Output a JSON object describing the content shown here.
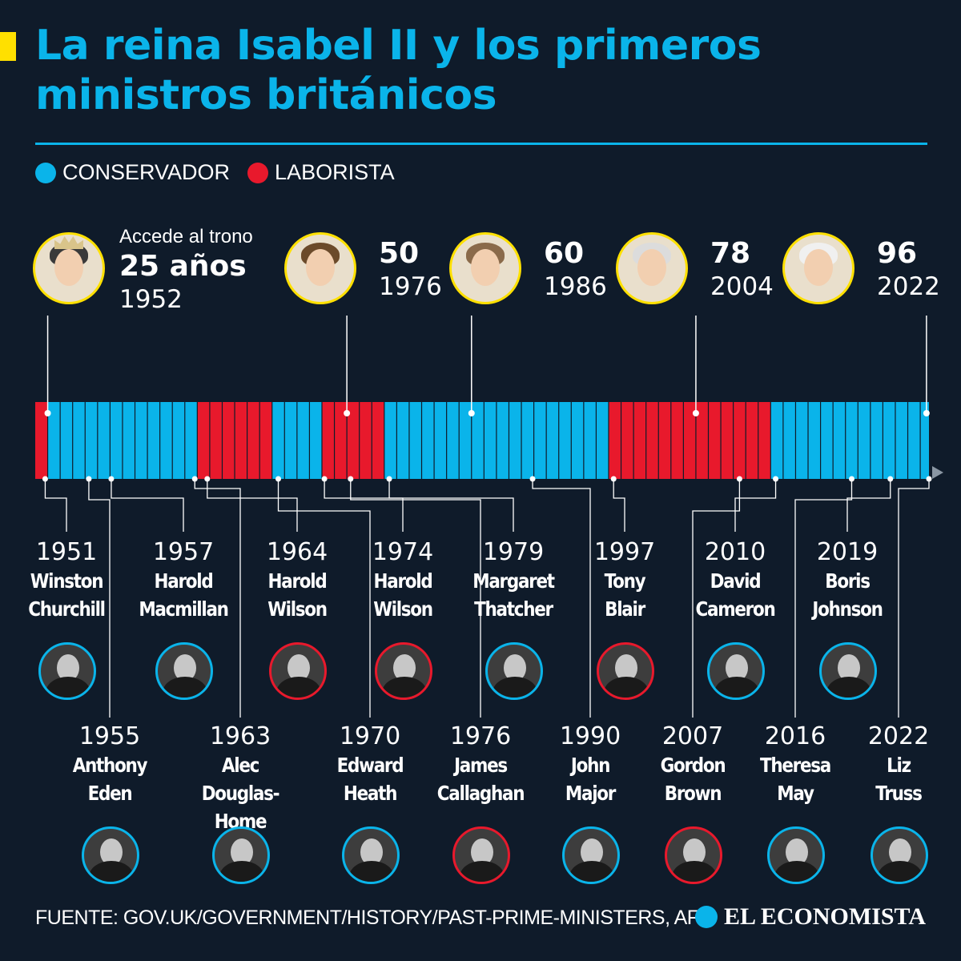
{
  "title": "La reina Isabel II y los primeros ministros británicos",
  "legend": [
    {
      "label": "CONSERVADOR",
      "color": "#0ab4ea"
    },
    {
      "label": "LABORISTA",
      "color": "#e8192c"
    }
  ],
  "colors": {
    "conservador": "#0ab4ea",
    "laborista": "#e8192c",
    "queen_ring": "#ffe000",
    "background": "#0f1b2a"
  },
  "timeline": {
    "segments": [
      {
        "from": 1951,
        "to": 1952,
        "party": "laborista"
      },
      {
        "from": 1952,
        "to": 1964,
        "party": "conservador"
      },
      {
        "from": 1964,
        "to": 1970,
        "party": "laborista"
      },
      {
        "from": 1970,
        "to": 1974,
        "party": "conservador"
      },
      {
        "from": 1974,
        "to": 1979,
        "party": "laborista"
      },
      {
        "from": 1979,
        "to": 1997,
        "party": "conservador"
      },
      {
        "from": 1997,
        "to": 2010,
        "party": "laborista"
      },
      {
        "from": 2010,
        "to": 2022.7,
        "party": "conservador"
      }
    ]
  },
  "queen_milestones": [
    {
      "note": "Accede al trono",
      "age": "25 años",
      "year": "1952",
      "year_value": 1952,
      "hair": "#3a3a3a"
    },
    {
      "age": "50",
      "year": "1976",
      "year_value": 1976,
      "hair": "#6b4a2a"
    },
    {
      "age": "60",
      "year": "1986",
      "year_value": 1986,
      "hair": "#8a6a4a"
    },
    {
      "age": "78",
      "year": "2004",
      "year_value": 2004,
      "hair": "#dcdcdc"
    },
    {
      "age": "96",
      "year": "2022",
      "year_value": 2022.5,
      "hair": "#f0f0f0"
    }
  ],
  "prime_ministers": [
    {
      "year": "1951",
      "name": [
        "Winston",
        "Churchill"
      ],
      "start": 1951.8,
      "party": "conservador",
      "row": "top"
    },
    {
      "year": "1955",
      "name": [
        "Anthony",
        "Eden"
      ],
      "start": 1955.3,
      "party": "conservador",
      "row": "bottom"
    },
    {
      "year": "1957",
      "name": [
        "Harold",
        "Macmillan"
      ],
      "start": 1957.1,
      "party": "conservador",
      "row": "top"
    },
    {
      "year": "1963",
      "name": [
        "Alec",
        "Douglas-Home"
      ],
      "start": 1963.8,
      "party": "conservador",
      "row": "bottom"
    },
    {
      "year": "1964",
      "name": [
        "Harold",
        "Wilson"
      ],
      "start": 1964.8,
      "party": "laborista",
      "row": "top"
    },
    {
      "year": "1970",
      "name": [
        "Edward",
        "Heath"
      ],
      "start": 1970.5,
      "party": "conservador",
      "row": "bottom"
    },
    {
      "year": "1974",
      "name": [
        "Harold",
        "Wilson"
      ],
      "start": 1974.2,
      "party": "laborista",
      "row": "top"
    },
    {
      "year": "1976",
      "name": [
        "James",
        "Callaghan"
      ],
      "start": 1976.3,
      "party": "laborista",
      "row": "bottom"
    },
    {
      "year": "1979",
      "name": [
        "Margaret",
        "Thatcher"
      ],
      "start": 1979.4,
      "party": "conservador",
      "row": "top"
    },
    {
      "year": "1990",
      "name": [
        "John",
        "Major"
      ],
      "start": 1990.9,
      "party": "conservador",
      "row": "bottom"
    },
    {
      "year": "1997",
      "name": [
        "Tony",
        "Blair"
      ],
      "start": 1997.4,
      "party": "laborista",
      "row": "top"
    },
    {
      "year": "2007",
      "name": [
        "Gordon",
        "Brown"
      ],
      "start": 2007.5,
      "party": "laborista",
      "row": "bottom"
    },
    {
      "year": "2010",
      "name": [
        "David",
        "Cameron"
      ],
      "start": 2010.4,
      "party": "conservador",
      "row": "top"
    },
    {
      "year": "2016",
      "name": [
        "Theresa",
        "May"
      ],
      "start": 2016.5,
      "party": "conservador",
      "row": "bottom"
    },
    {
      "year": "2019",
      "name": [
        "Boris",
        "Johnson"
      ],
      "start": 2019.6,
      "party": "conservador",
      "row": "top"
    },
    {
      "year": "2022",
      "name": [
        "Liz",
        "Truss"
      ],
      "start": 2022.7,
      "party": "conservador",
      "row": "bottom"
    }
  ],
  "footer": {
    "source": "FUENTE: GOV.UK/GOVERNMENT/HISTORY/PAST-PRIME-MINISTERS, AFP"
  },
  "brand": {
    "name": "EL ECONOMISTA"
  }
}
